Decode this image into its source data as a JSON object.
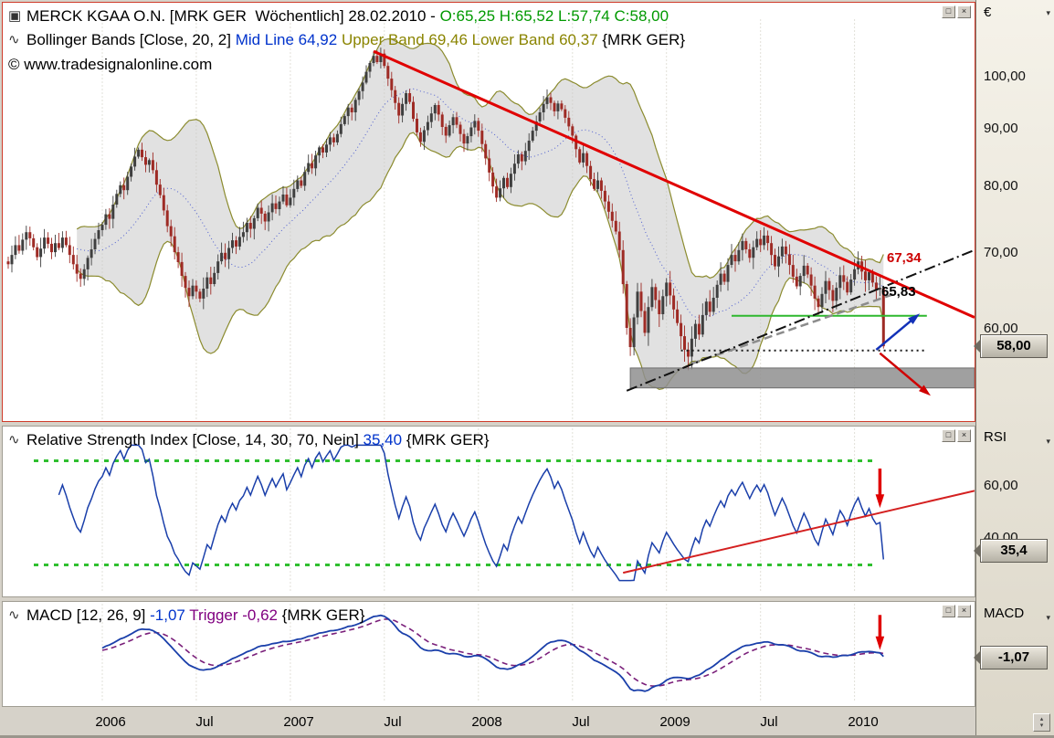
{
  "price_header": {
    "icon": "▣",
    "segments": [
      {
        "t": "MERCK KGAA O.N. [MRK GER  Wöchentlich] 28.02.2010 - ",
        "c": "#000000"
      },
      {
        "t": "O:65,25 H:65,52 L:57,74 ",
        "c": "#009900"
      },
      {
        "t": "C:58,00",
        "c": "#009900"
      }
    ]
  },
  "bollinger_header": {
    "icon": "∿",
    "segments": [
      {
        "t": "Bollinger Bands [Close, 20, 2] ",
        "c": "#000000"
      },
      {
        "t": "Mid Line 64,92 ",
        "c": "#0033cc"
      },
      {
        "t": "Upper Band 69,46 Lower Band 60,37 ",
        "c": "#8a8400"
      },
      {
        "t": "{MRK GER}",
        "c": "#000000"
      }
    ]
  },
  "branding": {
    "copyright": "© www.tradesignalonline.com"
  },
  "rsi_header": {
    "icon": "∿",
    "segments": [
      {
        "t": "Relative Strength Index [Close, 14, 30, 70, Nein] ",
        "c": "#000000"
      },
      {
        "t": "35,40 ",
        "c": "#0033cc"
      },
      {
        "t": "{MRK GER}",
        "c": "#000000"
      }
    ]
  },
  "macd_header": {
    "icon": "∿",
    "segments": [
      {
        "t": "MACD [12, 26, 9] ",
        "c": "#000000"
      },
      {
        "t": "-1,07 ",
        "c": "#0033cc"
      },
      {
        "t": "Trigger -0,62 ",
        "c": "#800080"
      },
      {
        "t": "{MRK GER}",
        "c": "#000000"
      }
    ]
  },
  "window_buttons": {
    "restore": "□",
    "close": "×"
  },
  "scale": {
    "currency": "€",
    "caret": "▾",
    "price_ticks": [
      100,
      90,
      80,
      70,
      60
    ],
    "price_tick_labels": [
      "100,00",
      "90,00",
      "80,00",
      "70,00",
      "60,00"
    ],
    "price_tag": "58,00",
    "rsi_label": "RSI",
    "rsi_ticks": [
      60,
      40
    ],
    "rsi_tick_labels": [
      "60,00",
      "40,00"
    ],
    "rsi_tag": "35,4",
    "macd_label": "MACD",
    "macd_tag": "-1,07",
    "corner": {
      "up": "▴",
      "down": "▾"
    }
  },
  "x_axis": {
    "labels": [
      {
        "text": "2006",
        "week": 26
      },
      {
        "text": "Jul",
        "week": 52
      },
      {
        "text": "2007",
        "week": 78
      },
      {
        "text": "Jul",
        "week": 104
      },
      {
        "text": "2008",
        "week": 130
      },
      {
        "text": "Jul",
        "week": 156
      },
      {
        "text": "2009",
        "week": 182
      },
      {
        "text": "Jul",
        "week": 208
      },
      {
        "text": "2010",
        "week": 234
      }
    ]
  },
  "colors": {
    "up_candle": "#3f3f3f",
    "down_candle": "#9e2b25",
    "bollinger_band": "#8b8b2e",
    "bollinger_fill": "#c9c9c9",
    "mid_line": "#4f5fd0",
    "rsi_line": "#1a3faa",
    "macd_line": "#1a3faa",
    "trigger_line": "#7a1f7a",
    "trend_red": "#e00000",
    "trend_black": "#111111",
    "trend_gray": "#8c8c8c",
    "support_green": "#2eb82e",
    "level_green": "#2fbf2f",
    "grid": "#e2e0d8",
    "panel_border_red": "#cf3b2a"
  },
  "chart_data": [
    {
      "type": "candlestick",
      "symbol": "MRK GER",
      "interval": "Wöchentlich",
      "date": "28.02.2010",
      "ohlc_current": {
        "open": 65.25,
        "high": 65.52,
        "low": 57.74,
        "close": 58.0
      },
      "scale": "log",
      "ylim": [
        50,
        108
      ],
      "y_ticks": [
        100,
        90,
        80,
        70,
        60
      ],
      "indicators": {
        "bollinger": {
          "source": "Close",
          "period": 20,
          "stddev": 2,
          "mid": 64.92,
          "upper": 69.46,
          "lower": 60.37
        }
      },
      "weekly_closes": [
        68.5,
        69.8,
        71.2,
        70.4,
        72.0,
        73.1,
        72.2,
        70.9,
        69.5,
        70.7,
        72.3,
        71.4,
        70.2,
        71.5,
        70.8,
        72.3,
        71.2,
        69.8,
        68.5,
        67.2,
        66.5,
        67.8,
        69.4,
        70.6,
        72.1,
        73.4,
        74.2,
        75.8,
        75.1,
        77.3,
        79.0,
        80.4,
        79.6,
        81.8,
        83.5,
        85.2,
        86.4,
        85.1,
        83.8,
        84.6,
        82.9,
        80.5,
        78.8,
        76.4,
        74.0,
        72.5,
        70.2,
        68.8,
        66.9,
        65.3,
        64.2,
        65.6,
        64.8,
        63.9,
        65.2,
        66.7,
        65.8,
        67.3,
        68.9,
        70.1,
        69.2,
        70.8,
        71.9,
        71.0,
        72.4,
        73.1,
        74.5,
        73.6,
        75.2,
        76.8,
        75.9,
        74.7,
        76.1,
        77.5,
        76.6,
        77.8,
        78.9,
        77.2,
        78.4,
        79.8,
        81.2,
        80.3,
        82.6,
        84.1,
        83.2,
        85.4,
        86.8,
        85.9,
        87.3,
        88.6,
        87.7,
        89.2,
        91.0,
        92.5,
        94.1,
        93.2,
        95.6,
        97.3,
        99.0,
        101.2,
        103.0,
        104.5,
        103.2,
        105.0,
        102.4,
        99.8,
        97.5,
        95.0,
        92.6,
        94.8,
        96.9,
        95.2,
        92.0,
        89.5,
        87.8,
        89.9,
        91.4,
        93.0,
        94.6,
        92.8,
        90.5,
        88.9,
        90.8,
        92.3,
        90.9,
        89.2,
        87.5,
        88.8,
        90.4,
        91.6,
        89.8,
        87.4,
        84.9,
        82.5,
        80.2,
        78.4,
        79.9,
        81.6,
        80.1,
        82.3,
        84.0,
        85.6,
        84.4,
        86.2,
        88.0,
        89.8,
        91.5,
        93.2,
        94.8,
        96.1,
        95.0,
        93.4,
        94.9,
        93.8,
        92.2,
        90.6,
        88.9,
        86.5,
        84.2,
        85.8,
        83.6,
        81.4,
        79.8,
        81.2,
        79.5,
        77.8,
        76.2,
        74.8,
        73.2,
        70.5,
        65.8,
        60.2,
        57.9,
        61.5,
        64.8,
        62.3,
        59.6,
        62.8,
        65.4,
        63.7,
        61.9,
        64.2,
        66.0,
        64.3,
        62.5,
        60.8,
        59.2,
        57.6,
        56.8,
        58.9,
        60.7,
        59.4,
        61.8,
        63.5,
        62.2,
        64.0,
        65.7,
        67.2,
        66.1,
        68.4,
        69.8,
        68.9,
        70.5,
        71.8,
        70.6,
        69.4,
        70.9,
        72.1,
        71.2,
        72.6,
        71.5,
        69.8,
        68.2,
        69.6,
        71.0,
        69.9,
        68.4,
        66.8,
        65.5,
        66.9,
        68.3,
        67.1,
        65.6,
        63.9,
        62.8,
        64.5,
        66.2,
        65.0,
        63.6,
        65.3,
        67.0,
        66.1,
        64.7,
        66.4,
        67.8,
        68.9,
        67.5,
        66.3,
        67.4,
        66.0,
        65.1,
        65.3,
        58.0
      ],
      "overlays": {
        "downtrend_line": {
          "style": "solid",
          "color": "red",
          "from": {
            "week": 101,
            "price": 105.5
          },
          "to": {
            "week": 268,
            "price": 61.5
          }
        },
        "uptrend_line": {
          "style": "dash-dot",
          "color": "black",
          "from": {
            "week": 171,
            "price": 53.0
          },
          "to": {
            "week": 268,
            "price": 70.5
          }
        },
        "gray_trend": {
          "style": "dashed",
          "from": {
            "week": 189,
            "price": 56.0
          },
          "to": {
            "week": 245,
            "price": 64.5
          }
        },
        "support_line_green": {
          "price": 61.7,
          "from_week": 200,
          "to_week": 254
        },
        "prior_low_dotted": {
          "price": 57.5,
          "from_week": 186,
          "to_week": 254
        },
        "support_zone": {
          "price_top": 55.5,
          "price_bottom": 53.3,
          "from_week": 172,
          "to_week": 268
        },
        "scenario_up_arrow": {
          "from": {
            "week": 240,
            "price": 57.6
          },
          "to": {
            "week": 251,
            "price": 61.6
          }
        },
        "scenario_down_arrow": {
          "from": {
            "week": 241,
            "price": 57.2
          },
          "to": {
            "week": 254,
            "price": 52.8
          }
        },
        "line_values": {
          "red": "67,34",
          "black": "65,83"
        }
      }
    },
    {
      "type": "line",
      "name": "Relative Strength Index",
      "params": {
        "source": "Close",
        "period": 14,
        "lower_level": 30,
        "upper_level": 70,
        "show": "Nein"
      },
      "value": 35.4,
      "levels": [
        30,
        70
      ],
      "y_ticks": [
        60,
        40
      ],
      "derived_from": "weekly_closes",
      "trendline": {
        "from": {
          "week": 170,
          "value": 27
        },
        "to": {
          "week": 268,
          "value": 58.5
        }
      },
      "signal_arrow": {
        "week": 241,
        "from": 67,
        "to": 54
      }
    },
    {
      "type": "line",
      "name": "MACD",
      "params": {
        "fast": 12,
        "slow": 26,
        "signal": 9
      },
      "value": -1.07,
      "trigger": -0.62,
      "derived_from": "weekly_closes",
      "signal_arrow": {
        "week": 241,
        "from": 6.4,
        "to": 1.2
      }
    }
  ]
}
